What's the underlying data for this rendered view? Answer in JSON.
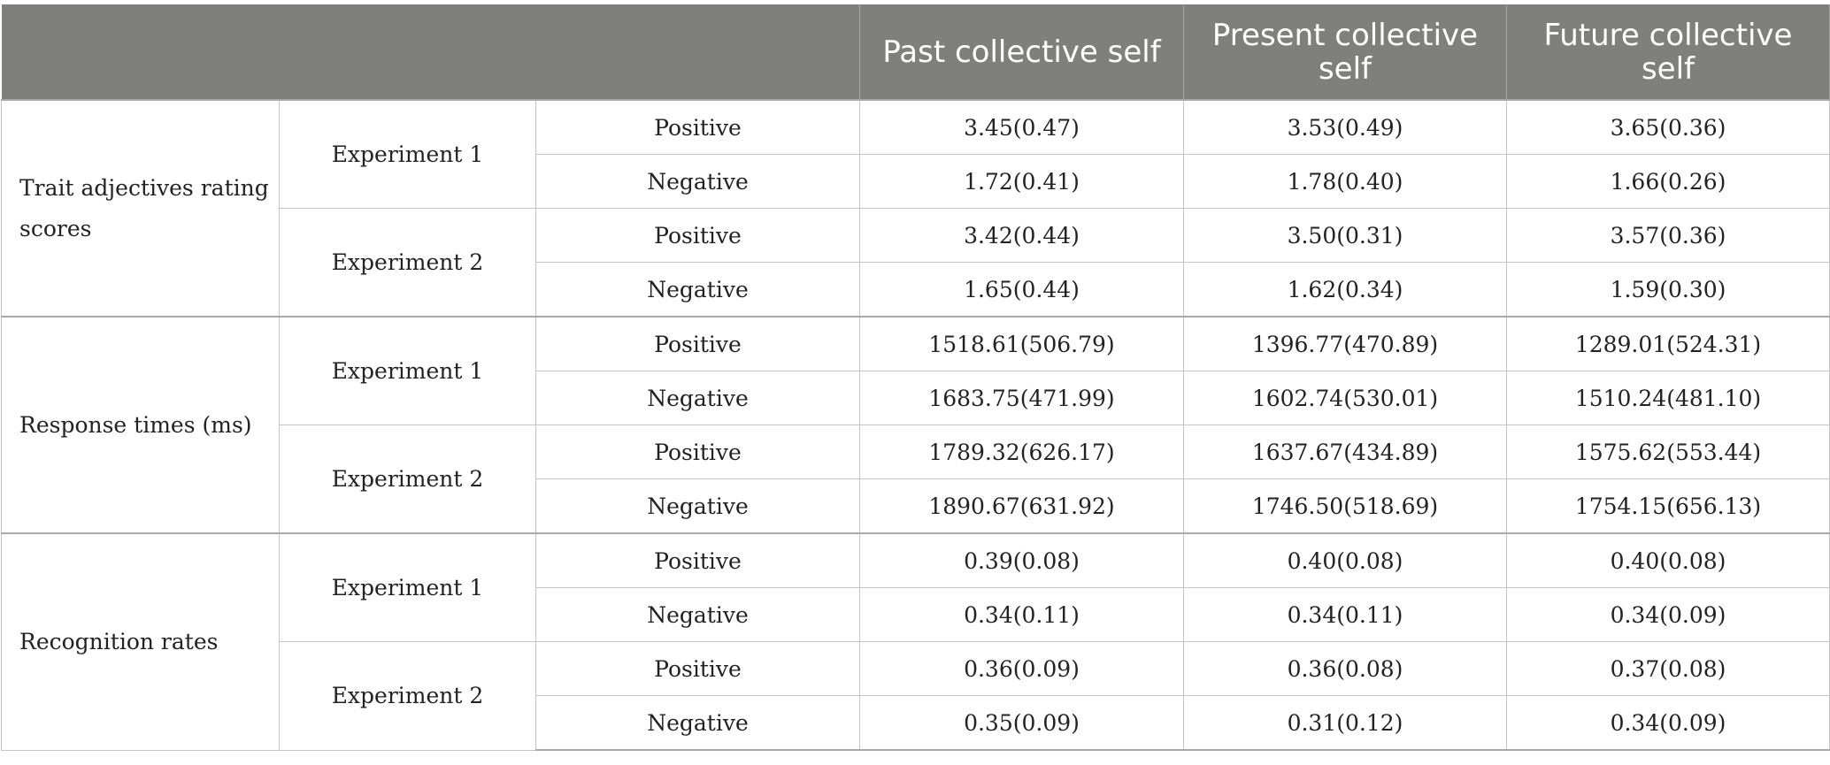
{
  "table": {
    "columns": [
      "",
      "",
      "",
      "Past collective self",
      "Present collective self",
      "Future collective self"
    ],
    "groups": [
      {
        "metric": "Trait adjectives rating scores",
        "experiments": [
          {
            "name": "Experiment 1",
            "rows": [
              {
                "valence": "Positive",
                "past": "3.45(0.47)",
                "present": "3.53(0.49)",
                "future": "3.65(0.36)"
              },
              {
                "valence": "Negative",
                "past": "1.72(0.41)",
                "present": "1.78(0.40)",
                "future": "1.66(0.26)"
              }
            ]
          },
          {
            "name": "Experiment 2",
            "rows": [
              {
                "valence": "Positive",
                "past": "3.42(0.44)",
                "present": "3.50(0.31)",
                "future": "3.57(0.36)"
              },
              {
                "valence": "Negative",
                "past": "1.65(0.44)",
                "present": "1.62(0.34)",
                "future": "1.59(0.30)"
              }
            ]
          }
        ]
      },
      {
        "metric": "Response times (ms)",
        "experiments": [
          {
            "name": "Experiment 1",
            "rows": [
              {
                "valence": "Positive",
                "past": "1518.61(506.79)",
                "present": "1396.77(470.89)",
                "future": "1289.01(524.31)"
              },
              {
                "valence": "Negative",
                "past": "1683.75(471.99)",
                "present": "1602.74(530.01)",
                "future": "1510.24(481.10)"
              }
            ]
          },
          {
            "name": "Experiment 2",
            "rows": [
              {
                "valence": "Positive",
                "past": "1789.32(626.17)",
                "present": "1637.67(434.89)",
                "future": "1575.62(553.44)"
              },
              {
                "valence": "Negative",
                "past": "1890.67(631.92)",
                "present": "1746.50(518.69)",
                "future": "1754.15(656.13)"
              }
            ]
          }
        ]
      },
      {
        "metric": "Recognition rates",
        "experiments": [
          {
            "name": "Experiment 1",
            "rows": [
              {
                "valence": "Positive",
                "past": "0.39(0.08)",
                "present": "0.40(0.08)",
                "future": "0.40(0.08)"
              },
              {
                "valence": "Negative",
                "past": "0.34(0.11)",
                "present": "0.34(0.11)",
                "future": "0.34(0.09)"
              }
            ]
          },
          {
            "name": "Experiment 2",
            "rows": [
              {
                "valence": "Positive",
                "past": "0.36(0.09)",
                "present": "0.36(0.08)",
                "future": "0.37(0.08)"
              },
              {
                "valence": "Negative",
                "past": "0.35(0.09)",
                "present": "0.31(0.12)",
                "future": "0.34(0.09)"
              }
            ]
          }
        ]
      }
    ]
  }
}
